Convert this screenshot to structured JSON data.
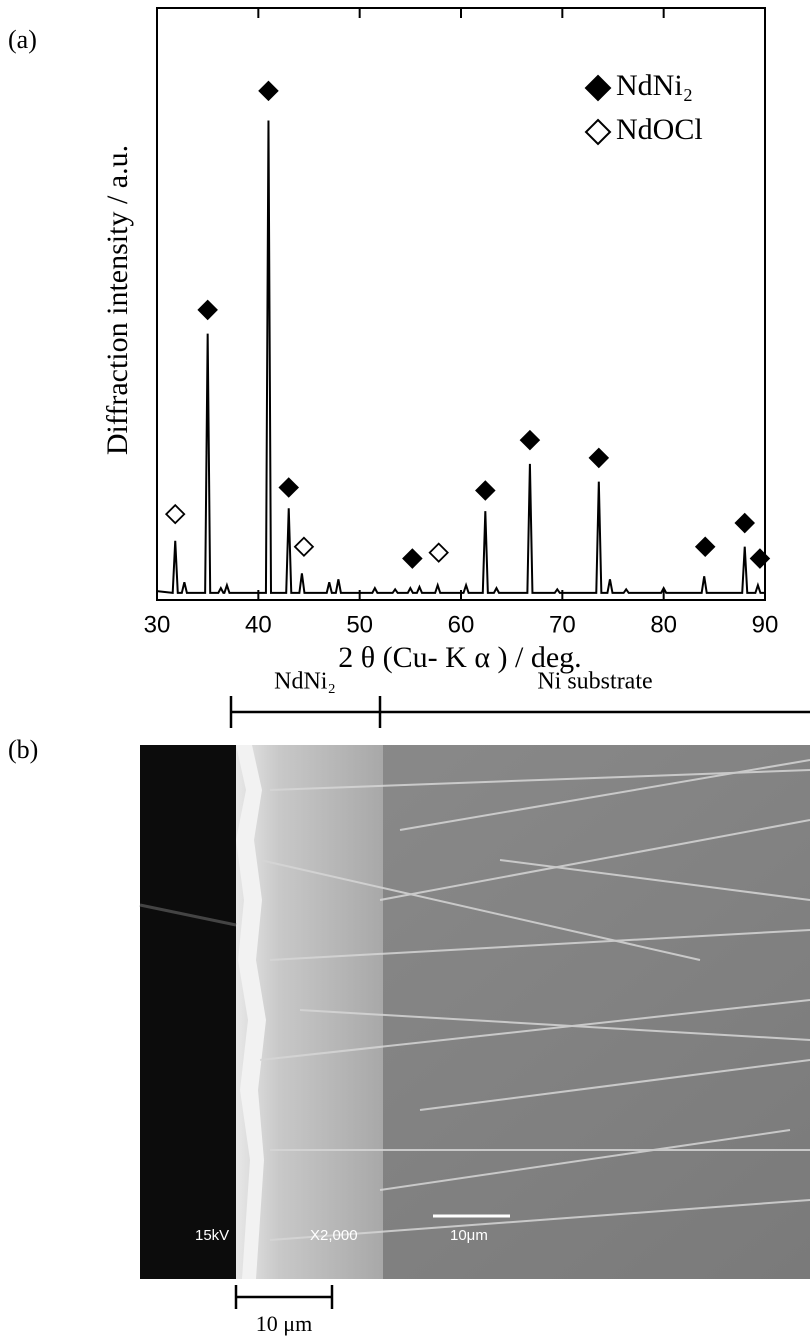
{
  "chart_data": {
    "type": "line",
    "panel_label": "(a)",
    "x_label": "2 θ (Cu- K α ) / deg.",
    "y_label": "Diffraction intensity / a.u.",
    "xlim": [
      30,
      90
    ],
    "xticks": [
      30,
      40,
      50,
      60,
      70,
      80,
      90
    ],
    "ylim": [
      0,
      100
    ],
    "color": "#000000",
    "x": [
      30,
      31.55,
      31.8,
      32.05,
      32.45,
      32.7,
      32.95,
      34.75,
      35,
      35.25,
      36.05,
      36.3,
      36.55,
      36.65,
      36.9,
      37.15,
      40.75,
      41,
      41.25,
      42.75,
      43,
      43.25,
      44.05,
      44.3,
      44.55,
      46.75,
      47,
      47.25,
      47.65,
      47.9,
      48.15,
      51.25,
      51.5,
      51.75,
      53.25,
      53.5,
      53.75,
      54.75,
      55,
      55.25,
      55.65,
      55.9,
      56.15,
      57.45,
      57.7,
      57.95,
      60.25,
      60.5,
      60.75,
      62.15,
      62.4,
      62.65,
      63.25,
      63.5,
      63.75,
      66.55,
      66.8,
      67.05,
      69.25,
      69.5,
      69.75,
      73.35,
      73.6,
      73.85,
      74.45,
      74.7,
      74.95,
      76.05,
      76.3,
      76.55,
      79.75,
      80,
      80.25,
      83.75,
      84,
      84.25,
      87.75,
      88,
      88.25,
      89.05,
      89.3,
      89.55,
      90
    ],
    "values": [
      1.5,
      1.2,
      10,
      1.2,
      1.2,
      3,
      1.2,
      1.2,
      45,
      1.2,
      1.2,
      2,
      1.2,
      1.2,
      2.5,
      1.2,
      1.2,
      81,
      1.2,
      1.2,
      15.5,
      1.2,
      1.2,
      4.5,
      1.2,
      1.2,
      3,
      1.2,
      1.2,
      3.5,
      1.2,
      1.2,
      2,
      1.2,
      1.2,
      1.8,
      1.2,
      1.2,
      2,
      1.2,
      1.2,
      2.2,
      1.2,
      1.2,
      2.5,
      1.2,
      1.2,
      2.5,
      1.2,
      1.2,
      15,
      1.2,
      1.2,
      2,
      1.2,
      1.2,
      23,
      1.2,
      1.2,
      1.8,
      1.2,
      1.2,
      20,
      1.2,
      1.2,
      3.5,
      1.2,
      1.2,
      1.8,
      1.2,
      1.2,
      2,
      1.2,
      1.2,
      4,
      1.2,
      1.2,
      9,
      1.2,
      1.2,
      2.5,
      1.2,
      1.2
    ],
    "markers": [
      {
        "name": "NdNi₂",
        "filled": true,
        "x": [
          35,
          41,
          43,
          55.2,
          62.4,
          66.8,
          73.6,
          84.1,
          88,
          89.5
        ],
        "values": [
          49,
          86,
          19,
          7,
          18.5,
          27,
          24,
          9,
          13,
          7
        ]
      },
      {
        "name": "NdOCl",
        "filled": false,
        "x": [
          31.8,
          44.5,
          57.8
        ],
        "values": [
          14.5,
          9,
          8
        ]
      }
    ]
  },
  "image": {
    "panel_label": "(b)",
    "layer_label": "NdNi₂",
    "substrate_label": "Ni substrate",
    "overlay": {
      "voltage": "15kV",
      "magnification": "X2,000",
      "scale": "10μm"
    },
    "scale_bar_label": "10 μm"
  }
}
